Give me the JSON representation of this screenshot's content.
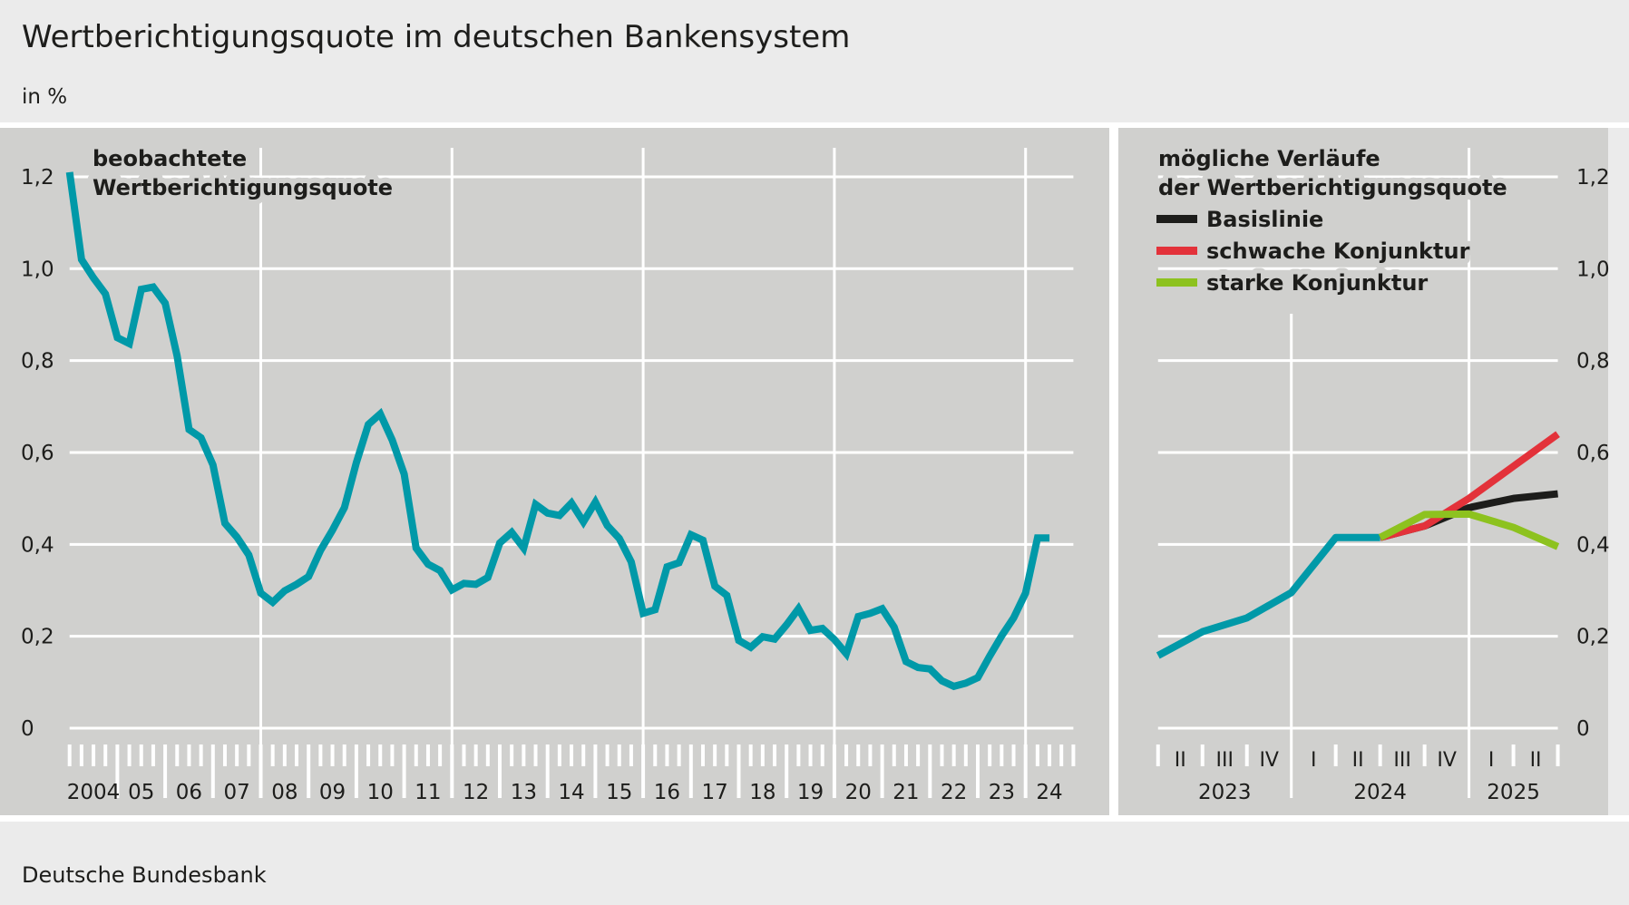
{
  "header": {
    "title": "Wertberichtigungsquote im deutschen Bankensystem",
    "unit": "in %"
  },
  "footer": {
    "source": "Deutsche Bundesbank"
  },
  "colors": {
    "observed": "#0099a8",
    "baseline": "#1d1d1b",
    "weak": "#e3323a",
    "strong": "#8dc21f",
    "panel": "#d0d0ce",
    "background": "#ebebeb"
  },
  "chart_data": [
    {
      "type": "line",
      "label_lines": [
        "beobachtete",
        "Wertberichtigungsquote"
      ],
      "xlim": [
        2004,
        2025
      ],
      "ylim": [
        0,
        1.2
      ],
      "grid": true,
      "ytick_values": [
        0,
        0.2,
        0.4,
        0.6,
        0.8,
        1.0,
        1.2
      ],
      "ytick_labels": [
        "0",
        "0,2",
        "0,4",
        "0,6",
        "0,8",
        "1,0",
        "1,2"
      ],
      "xtick_labels": [
        "2004",
        "05",
        "06",
        "07",
        "08",
        "09",
        "10",
        "11",
        "12",
        "13",
        "14",
        "15",
        "16",
        "17",
        "18",
        "19",
        "20",
        "21",
        "22",
        "23",
        "24"
      ],
      "series": [
        {
          "x": [
            2004,
            2004.25,
            2004.5,
            2004.75,
            2005,
            2005.25,
            2005.5,
            2005.75,
            2006,
            2006.25,
            2006.5,
            2006.75,
            2007,
            2007.25,
            2007.5,
            2007.75,
            2008,
            2008.25,
            2008.5,
            2008.75,
            2009,
            2009.25,
            2009.5,
            2009.75,
            2010,
            2010.25,
            2010.5,
            2010.75,
            2011,
            2011.25,
            2011.5,
            2011.75,
            2012,
            2012.25,
            2012.5,
            2012.75,
            2013,
            2013.25,
            2013.5,
            2013.75,
            2014,
            2014.25,
            2014.5,
            2014.75,
            2015,
            2015.25,
            2015.5,
            2015.75,
            2016,
            2016.25,
            2016.5,
            2016.75,
            2017,
            2017.25,
            2017.5,
            2017.75,
            2018,
            2018.25,
            2018.5,
            2018.75,
            2019,
            2019.25,
            2019.5,
            2019.75,
            2020,
            2020.25,
            2020.5,
            2020.75,
            2021,
            2021.25,
            2021.5,
            2021.75,
            2022,
            2022.25,
            2022.5,
            2022.75,
            2023,
            2023.25,
            2023.5,
            2023.75,
            2024,
            2024.25,
            2024.5
          ],
          "y": [
            1.21,
            1.02,
            0.98,
            0.945,
            0.85,
            0.837,
            0.955,
            0.96,
            0.925,
            0.81,
            0.65,
            0.632,
            0.573,
            0.446,
            0.416,
            0.377,
            0.294,
            0.274,
            0.299,
            0.313,
            0.33,
            0.387,
            0.431,
            0.48,
            0.578,
            0.661,
            0.684,
            0.627,
            0.553,
            0.392,
            0.357,
            0.343,
            0.301,
            0.315,
            0.313,
            0.328,
            0.403,
            0.426,
            0.392,
            0.487,
            0.468,
            0.463,
            0.49,
            0.449,
            0.492,
            0.441,
            0.413,
            0.362,
            0.25,
            0.258,
            0.351,
            0.36,
            0.421,
            0.409,
            0.309,
            0.289,
            0.191,
            0.176,
            0.199,
            0.194,
            0.225,
            0.26,
            0.213,
            0.217,
            0.193,
            0.162,
            0.243,
            0.25,
            0.26,
            0.22,
            0.145,
            0.132,
            0.129,
            0.103,
            0.091,
            0.098,
            0.11,
            0.157,
            0.201,
            0.24,
            0.294,
            0.414,
            0.414
          ],
          "color": "#0099a8"
        }
      ]
    },
    {
      "type": "line",
      "title_lines": [
        "mögliche Verläufe",
        "der Wertberichtigungsquote"
      ],
      "xlim": [
        2023.25,
        2025.5
      ],
      "ylim": [
        0,
        1.2
      ],
      "grid": true,
      "legend_placement": "top-left",
      "ytick_values": [
        0,
        0.2,
        0.4,
        0.6,
        0.8,
        1.0,
        1.2
      ],
      "ytick_labels": [
        "0",
        "0,2",
        "0,4",
        "0,6",
        "0,8",
        "1,0",
        "1,2"
      ],
      "quarter_labels": [
        "II",
        "III",
        "IV",
        "I",
        "II",
        "III",
        "IV",
        "I",
        "II"
      ],
      "year_labels": [
        "2023",
        "2024",
        "2025"
      ],
      "series": [
        {
          "x": [
            2023.25,
            2023.5,
            2023.75,
            2024,
            2024.25,
            2024.5
          ],
          "y": [
            0.158,
            0.21,
            0.24,
            0.295,
            0.415,
            0.415
          ],
          "color": "#0099a8"
        },
        {
          "name": "Basislinie",
          "x": [
            2024.5,
            2024.75,
            2025,
            2025.25,
            2025.5
          ],
          "y": [
            0.415,
            0.44,
            0.48,
            0.5,
            0.51
          ],
          "color": "#1d1d1b"
        },
        {
          "name": "schwache Konjunktur",
          "x": [
            2024.5,
            2024.75,
            2025,
            2025.25,
            2025.5
          ],
          "y": [
            0.415,
            0.44,
            0.5,
            0.57,
            0.64
          ],
          "color": "#e3323a"
        },
        {
          "name": "starke Konjunktur",
          "x": [
            2024.5,
            2024.75,
            2025,
            2025.25,
            2025.5
          ],
          "y": [
            0.415,
            0.465,
            0.466,
            0.437,
            0.395
          ],
          "color": "#8dc21f"
        }
      ]
    }
  ]
}
